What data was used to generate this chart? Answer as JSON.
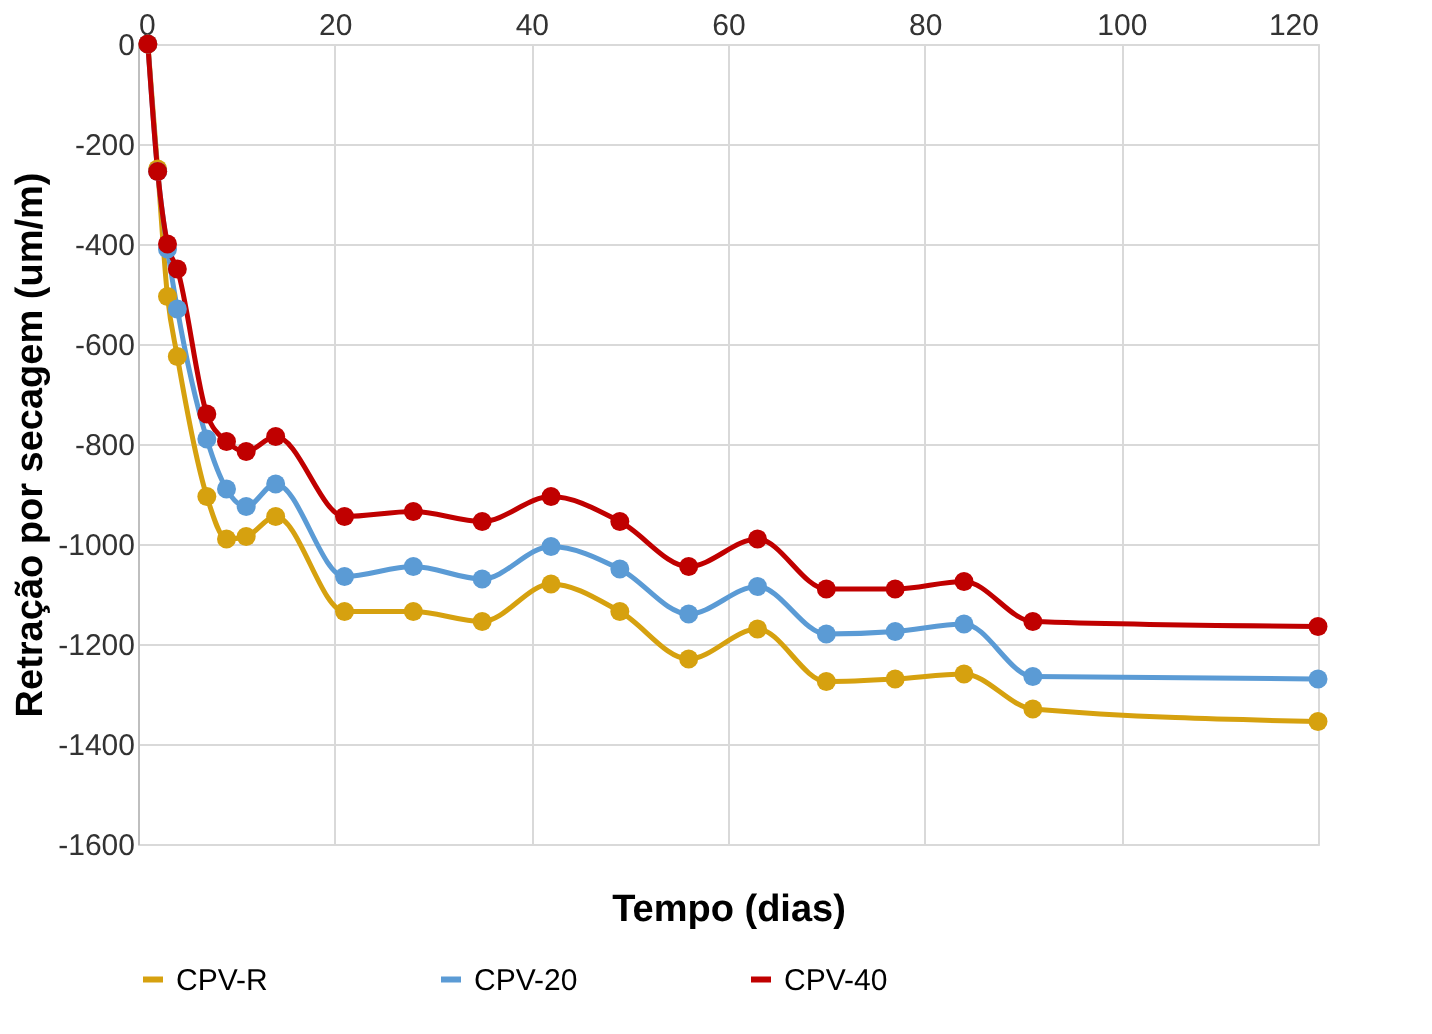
{
  "chart_data": {
    "type": "line",
    "xlabel": "Tempo (dias)",
    "ylabel": "Retração por secagem (um/m)",
    "x": [
      1,
      2,
      3,
      4,
      7,
      9,
      11,
      14,
      21,
      28,
      35,
      42,
      49,
      56,
      63,
      70,
      77,
      84,
      91,
      120
    ],
    "series": [
      {
        "name": "CPV-R",
        "color": "#d6a10f",
        "values": [
          0,
          -250,
          -505,
          -625,
          -905,
          -990,
          -985,
          -945,
          -1135,
          -1135,
          -1155,
          -1080,
          -1135,
          -1230,
          -1170,
          -1275,
          -1270,
          -1260,
          -1330,
          -1355
        ]
      },
      {
        "name": "CPV-20",
        "color": "#5b9bd5",
        "values": [
          0,
          -255,
          -410,
          -530,
          -790,
          -890,
          -925,
          -880,
          -1065,
          -1045,
          -1070,
          -1005,
          -1050,
          -1140,
          -1085,
          -1180,
          -1175,
          -1160,
          -1265,
          -1270
        ]
      },
      {
        "name": "CPV-40",
        "color": "#c00000",
        "values": [
          0,
          -255,
          -400,
          -450,
          -740,
          -795,
          -815,
          -785,
          -945,
          -935,
          -955,
          -905,
          -955,
          -1045,
          -990,
          -1090,
          -1090,
          -1075,
          -1155,
          -1165
        ]
      }
    ],
    "xlim": [
      0,
      120
    ],
    "xticks": [
      0,
      20,
      40,
      60,
      80,
      100,
      120
    ],
    "ylim": [
      -1600,
      0
    ],
    "yticks": [
      -1600,
      -1400,
      -1200,
      -1000,
      -800,
      -600,
      -400,
      -200,
      0
    ],
    "grid": true,
    "legend": "bottom",
    "marker": "circle",
    "line_style": "solid"
  }
}
